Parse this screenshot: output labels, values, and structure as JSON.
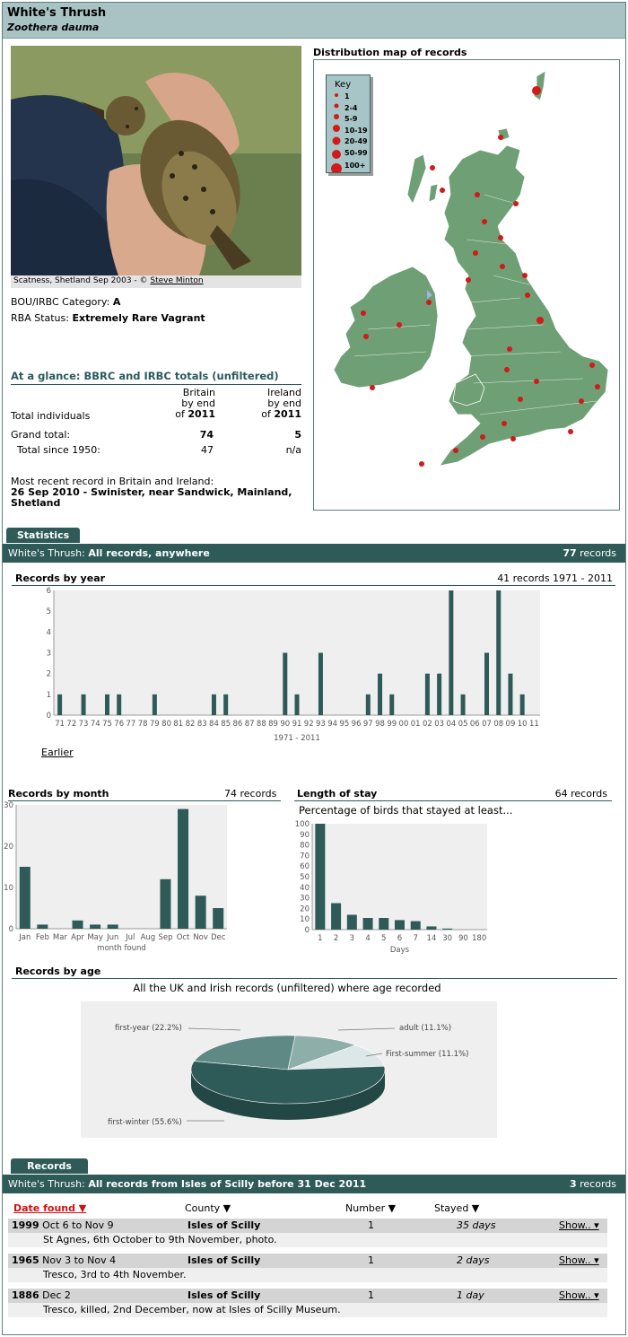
{
  "header": {
    "common_name": "White's Thrush",
    "scientific_name": "Zoothera dauma"
  },
  "photo": {
    "caption_prefix": "Scatness, Shetland Sep 2003 - © ",
    "photographer": "Steve Minton"
  },
  "category": {
    "label": "BOU/IRBC Category: ",
    "value": "A"
  },
  "status": {
    "label": "RBA Status: ",
    "value": "Extremely Rare Vagrant"
  },
  "glance": {
    "title": "At a glance: BBRC and IRBC totals (unfiltered)",
    "col1": [
      "Britain",
      "by end",
      "of"
    ],
    "col1_year": "2011",
    "col2": [
      "Ireland",
      "by end",
      "of"
    ],
    "col2_year": "2011",
    "row_label": "Total individuals",
    "grand_label": "Grand total:",
    "grand_britain": "74",
    "grand_ireland": "5",
    "since_label": "Total since 1950:",
    "since_britain": "47",
    "since_ireland": "n/a"
  },
  "recent": {
    "label": "Most recent record in Britain and Ireland:",
    "line1": "26 Sep 2010  - Swinister, near Sandwick, Mainland,",
    "line2": "Shetland"
  },
  "map": {
    "title": "Distribution map of records",
    "key_title": "Key",
    "key": [
      "1",
      "2-4",
      "5-9",
      "10-19",
      "20-49",
      "50-99",
      "100+"
    ],
    "land_color": "#6f9f74",
    "dot_color": "#d11a1a"
  },
  "stats": {
    "tab": "Statistics",
    "bar_left_prefix": "White's Thrush: ",
    "bar_left": "All records, anywhere",
    "bar_right_count": "77",
    "bar_right_unit": " records"
  },
  "by_year": {
    "title": "Records by year",
    "summary": "41 records 1971 - 2011",
    "xlabel": "1971 - 2011",
    "earlier": "Earlier"
  },
  "by_month": {
    "title": "Records by month",
    "summary": "74 records",
    "xlabel": "month found"
  },
  "stay": {
    "title": "Length of stay",
    "summary": "64 records",
    "subtitle": "Percentage of birds that stayed at least...",
    "xlabel": "Days"
  },
  "age": {
    "title": "Records by age",
    "subtitle": "All the UK and Irish records (unfiltered) where age recorded"
  },
  "records": {
    "tab": "Records",
    "bar_left_prefix": "White's Thrush: ",
    "bar_left": "All records from Isles of Scilly before 31 Dec 2011",
    "bar_right_count": "3",
    "bar_right_unit": " records",
    "col_date": "Date found ▼",
    "col_county": "County ▼",
    "col_number": "Number ▼",
    "col_stayed": "Stayed ▼",
    "rows": [
      {
        "year": "1999",
        "dates": " Oct 6 to Nov 9",
        "county": "Isles of Scilly",
        "number": "1",
        "stayed": "35 days",
        "show": "Show.. ▾",
        "desc": "St Agnes, 6th October to 9th November, photo."
      },
      {
        "year": "1965",
        "dates": " Nov 3 to Nov 4",
        "county": "Isles of Scilly",
        "number": "1",
        "stayed": "2 days",
        "show": "Show.. ▾",
        "desc": "Tresco, 3rd to 4th November."
      },
      {
        "year": "1886",
        "dates": " Dec 2",
        "county": "Isles of Scilly",
        "number": "1",
        "stayed": "1 day",
        "show": "Show.. ▾",
        "desc": "Tresco, killed, 2nd December, now at Isles of Scilly Museum."
      }
    ]
  },
  "chart_data": [
    {
      "type": "bar",
      "title": "Records by year",
      "xlabel": "1971 - 2011",
      "ylim": [
        0,
        6
      ],
      "categories": [
        "71",
        "72",
        "73",
        "74",
        "75",
        "76",
        "77",
        "78",
        "79",
        "80",
        "81",
        "82",
        "83",
        "84",
        "85",
        "86",
        "87",
        "88",
        "89",
        "90",
        "91",
        "92",
        "93",
        "94",
        "95",
        "96",
        "97",
        "98",
        "99",
        "00",
        "01",
        "02",
        "03",
        "04",
        "05",
        "06",
        "07",
        "08",
        "09",
        "10",
        "11"
      ],
      "values": [
        1,
        0,
        1,
        0,
        1,
        1,
        0,
        0,
        1,
        0,
        0,
        0,
        0,
        1,
        1,
        0,
        0,
        0,
        0,
        3,
        1,
        0,
        3,
        0,
        0,
        0,
        1,
        2,
        1,
        0,
        0,
        2,
        2,
        6,
        1,
        0,
        3,
        6,
        2,
        1,
        0
      ],
      "yticks": [
        "0",
        "1",
        "2",
        "3",
        "4",
        "5",
        "6"
      ],
      "bar_color": "#2e5a58"
    },
    {
      "type": "bar",
      "title": "Records by month",
      "xlabel": "month found",
      "ylim": [
        0,
        30
      ],
      "categories": [
        "Jan",
        "Feb",
        "Mar",
        "Apr",
        "May",
        "Jun",
        "Jul",
        "Aug",
        "Sep",
        "Oct",
        "Nov",
        "Dec"
      ],
      "values": [
        15,
        1,
        0,
        2,
        1,
        1,
        0,
        0,
        12,
        29,
        8,
        5
      ],
      "yticks": [
        "0",
        "10",
        "20",
        "30"
      ]
    },
    {
      "type": "bar",
      "title": "Length of stay",
      "xlabel": "Days",
      "ylim": [
        0,
        100
      ],
      "categories": [
        "1",
        "2",
        "3",
        "4",
        "5",
        "6",
        "7",
        "14",
        "30",
        "90",
        "180"
      ],
      "values": [
        100,
        25,
        14,
        11,
        11,
        9,
        8,
        3,
        1,
        0,
        0
      ],
      "yticks": [
        "0",
        "10",
        "20",
        "30",
        "40",
        "50",
        "60",
        "70",
        "80",
        "90",
        "100"
      ]
    },
    {
      "type": "pie",
      "title": "Records by age",
      "labels": [
        "first-year (22.2%)",
        "adult (11.1%)",
        "First-summer (11.1%)",
        "first-winter (55.6%)"
      ],
      "values": [
        22.2,
        11.1,
        11.1,
        55.6
      ],
      "colors": [
        "#5f8984",
        "#8eaeaa",
        "#dce8e7",
        "#2e5a58"
      ]
    }
  ]
}
